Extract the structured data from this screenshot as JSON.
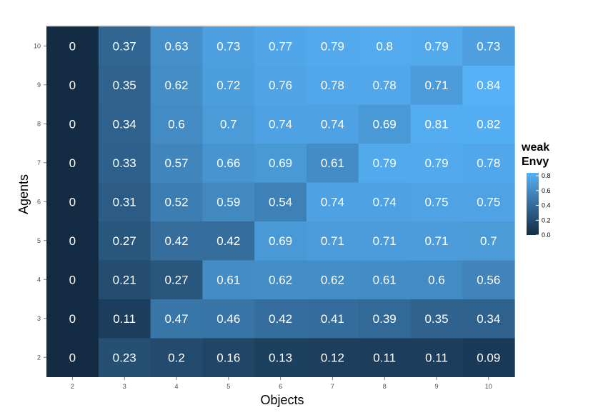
{
  "chart_data": {
    "type": "heatmap",
    "xlabel": "Objects",
    "ylabel": "Agents",
    "x": [
      "2",
      "3",
      "4",
      "5",
      "6",
      "7",
      "8",
      "9",
      "10"
    ],
    "y": [
      "2",
      "3",
      "4",
      "5",
      "6",
      "7",
      "8",
      "9",
      "10"
    ],
    "values": [
      [
        0,
        0.23,
        0.2,
        0.16,
        0.13,
        0.12,
        0.11,
        0.11,
        0.09
      ],
      [
        0,
        0.11,
        0.47,
        0.46,
        0.42,
        0.41,
        0.39,
        0.35,
        0.34
      ],
      [
        0,
        0.21,
        0.27,
        0.61,
        0.62,
        0.62,
        0.61,
        0.6,
        0.56
      ],
      [
        0,
        0.27,
        0.42,
        0.42,
        0.69,
        0.71,
        0.71,
        0.71,
        0.7
      ],
      [
        0,
        0.31,
        0.52,
        0.59,
        0.54,
        0.74,
        0.74,
        0.75,
        0.75
      ],
      [
        0,
        0.33,
        0.57,
        0.66,
        0.69,
        0.61,
        0.79,
        0.79,
        0.78
      ],
      [
        0,
        0.34,
        0.6,
        0.7,
        0.74,
        0.74,
        0.69,
        0.81,
        0.82
      ],
      [
        0,
        0.35,
        0.62,
        0.72,
        0.76,
        0.78,
        0.78,
        0.71,
        0.84
      ],
      [
        0,
        0.37,
        0.63,
        0.73,
        0.77,
        0.79,
        0.8,
        0.79,
        0.73
      ]
    ],
    "legend": {
      "title_lines": [
        "weak",
        "Envy"
      ],
      "ticks": [
        0.0,
        0.2,
        0.4,
        0.6,
        0.8
      ],
      "tick_labels": [
        "0.0",
        "0.2",
        "0.4",
        "0.6",
        "0.8"
      ],
      "range": [
        0,
        0.84
      ],
      "placement": "right",
      "low_color": "#132b43",
      "high_color": "#56b1f7"
    },
    "panel_background": "#e5e5e5",
    "grid": true
  }
}
